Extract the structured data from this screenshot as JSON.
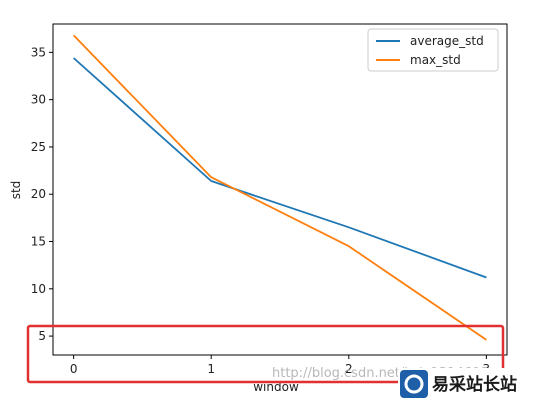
{
  "chart_data": {
    "type": "line",
    "title": "",
    "xlabel": "window",
    "ylabel": "std",
    "x": [
      0,
      1,
      2,
      3
    ],
    "xlim": [
      -0.15,
      3.15
    ],
    "ylim": [
      3,
      38
    ],
    "xticks": [
      "0",
      "1",
      "2",
      "3"
    ],
    "yticks": [
      "5",
      "10",
      "15",
      "20",
      "25",
      "30",
      "35"
    ],
    "series": [
      {
        "name": "average_std",
        "values": [
          34.4,
          21.4,
          16.5,
          11.2
        ],
        "color": "#1f77b4"
      },
      {
        "name": "max_std",
        "values": [
          36.8,
          21.8,
          14.5,
          4.6
        ],
        "color": "#ff7f0e"
      }
    ],
    "legend": "top-right",
    "grid": false
  },
  "annotation": {
    "color": "#e03030"
  },
  "watermark": {
    "text": "http://blog.csdn.net/kyle1314608"
  },
  "brand": {
    "name": "易采站长站",
    "color": "#1f5fa8"
  }
}
